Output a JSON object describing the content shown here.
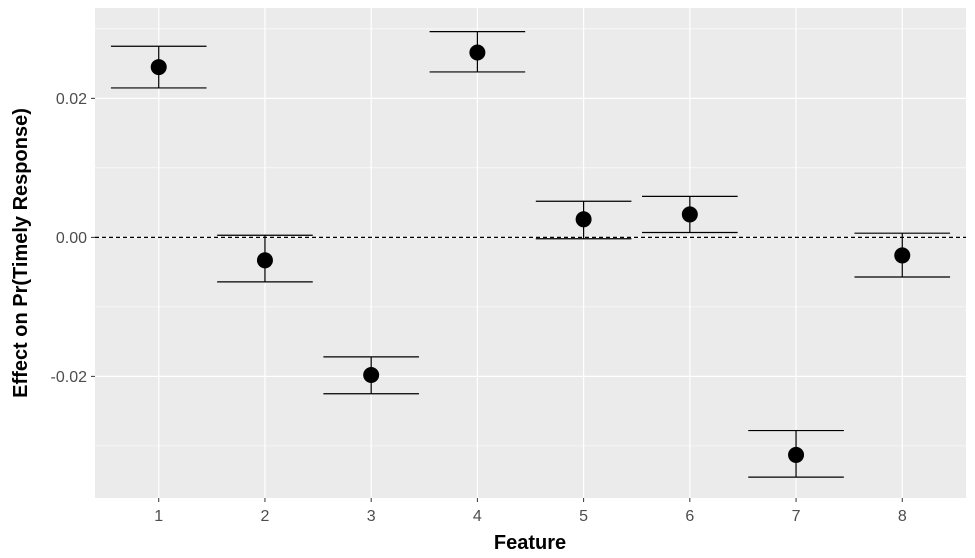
{
  "chart_data": {
    "type": "scatter",
    "title": "",
    "xlabel": "Feature",
    "ylabel": "Effect on Pr(Timely Response)",
    "x_categories": [
      "1",
      "2",
      "3",
      "4",
      "5",
      "6",
      "7",
      "8"
    ],
    "series": [
      {
        "points": [
          {
            "x": "1",
            "y": 0.0245,
            "lower": 0.0215,
            "upper": 0.0275
          },
          {
            "x": "2",
            "y": -0.0033,
            "lower": -0.0064,
            "upper": 0.0003
          },
          {
            "x": "3",
            "y": -0.0198,
            "lower": -0.0225,
            "upper": -0.0172
          },
          {
            "x": "4",
            "y": 0.0266,
            "lower": 0.0238,
            "upper": 0.0296
          },
          {
            "x": "5",
            "y": 0.0026,
            "lower": -0.0002,
            "upper": 0.0052
          },
          {
            "x": "6",
            "y": 0.0033,
            "lower": 0.0007,
            "upper": 0.0059
          },
          {
            "x": "7",
            "y": -0.0313,
            "lower": -0.0345,
            "upper": -0.0278
          },
          {
            "x": "8",
            "y": -0.0026,
            "lower": -0.0057,
            "upper": 0.0006
          }
        ]
      }
    ],
    "y_ticks": [
      -0.02,
      0.0,
      0.02
    ],
    "y_tick_labels": [
      "-0.02",
      "0.00",
      "0.02"
    ],
    "ylim": [
      -0.0375,
      0.033
    ],
    "reference_line": {
      "y": 0,
      "style": "dashed"
    },
    "grid": true,
    "legend": "none",
    "colors": {
      "panel_background": "#ebebeb",
      "gridline": "#ffffff",
      "point": "#000000",
      "errorbar": "#000000",
      "tick_label": "#4d4d4d",
      "axis_title": "#000000"
    }
  }
}
